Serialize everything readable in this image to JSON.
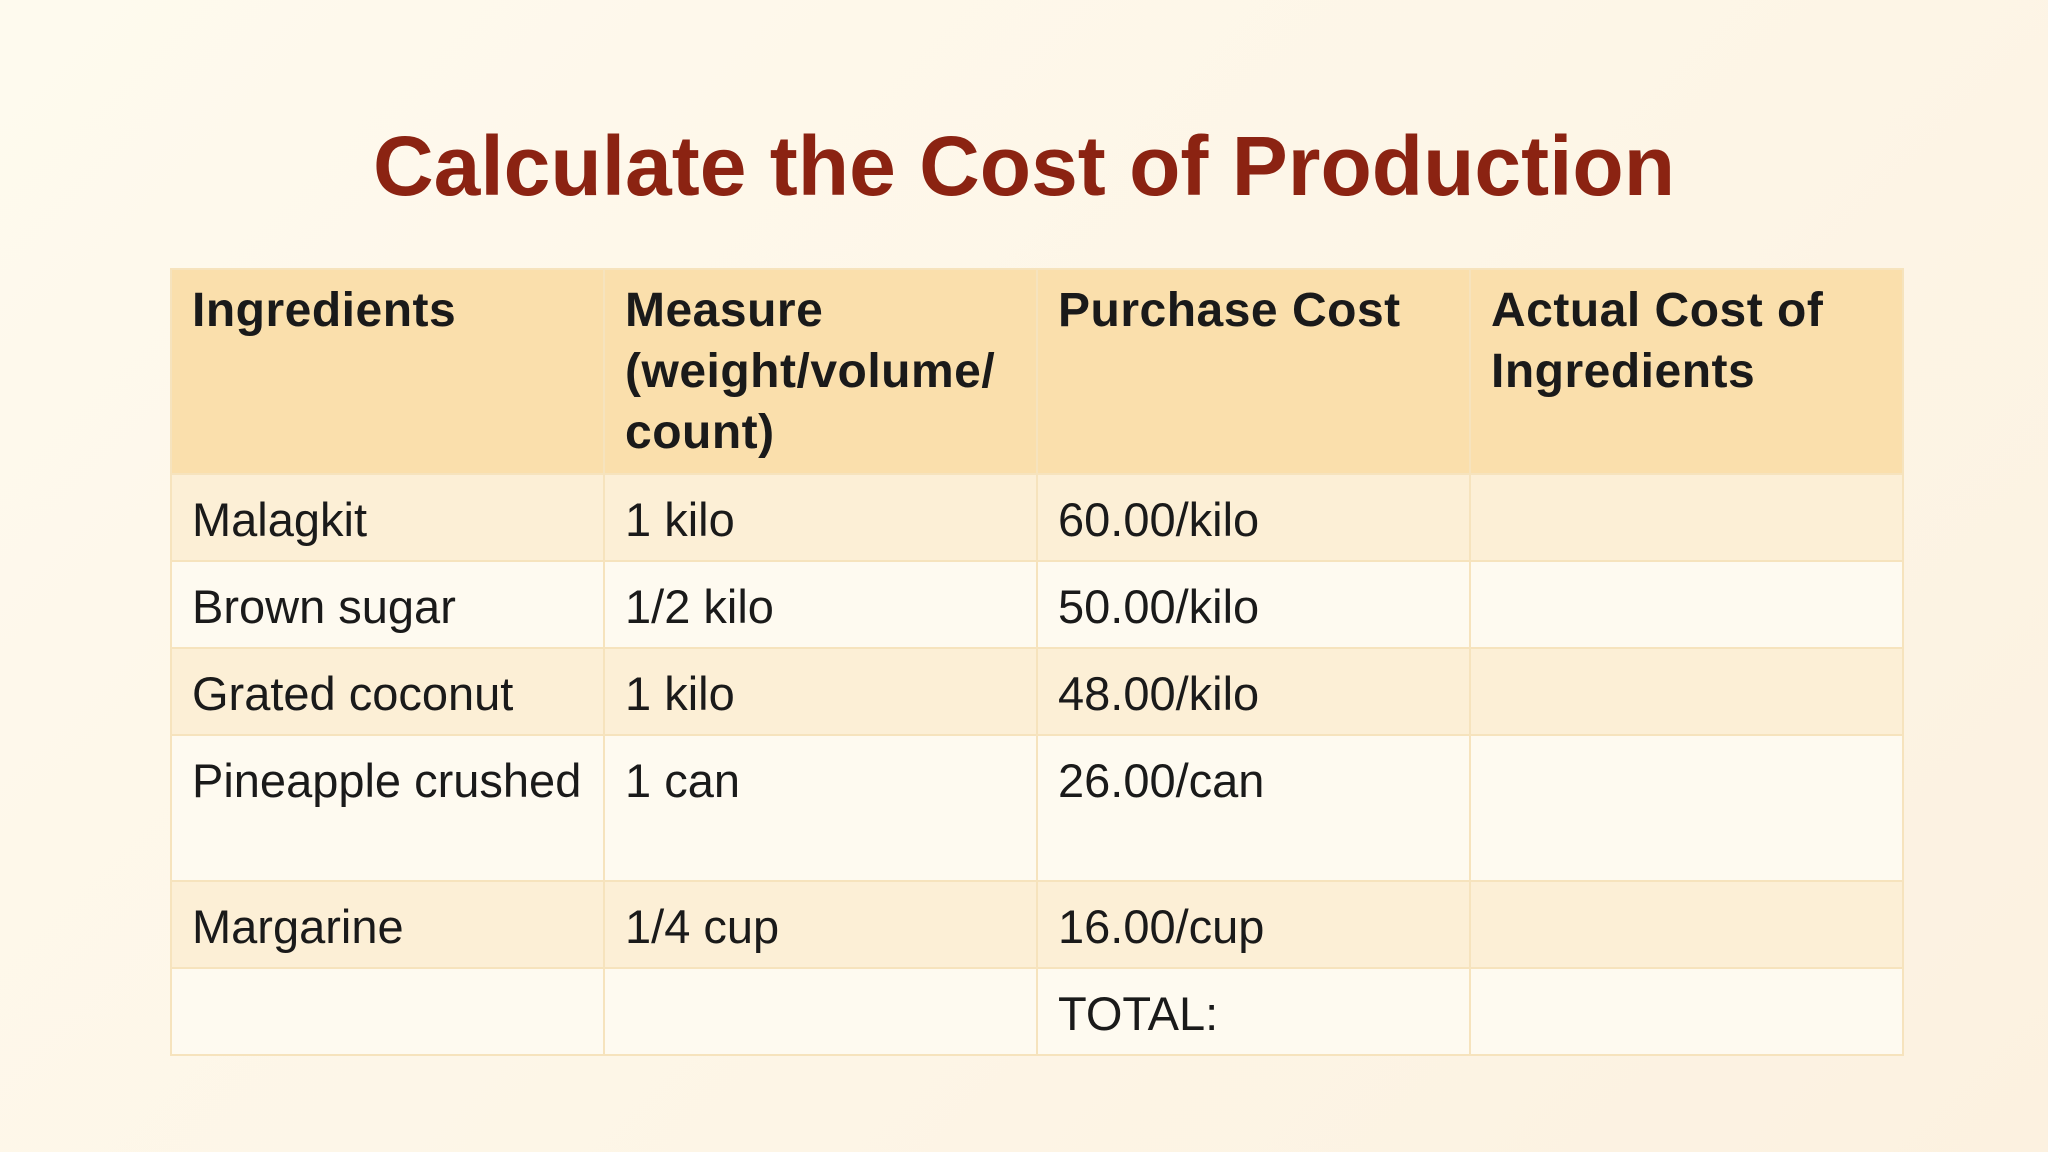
{
  "slide": {
    "title": "Calculate the Cost of Production"
  },
  "table": {
    "headers": [
      "Ingredients",
      "Measure (weight/volume/ count)",
      "Purchase Cost",
      "Actual Cost of Ingredients"
    ],
    "rows": [
      [
        "Malagkit",
        "1 kilo",
        "60.00/kilo",
        ""
      ],
      [
        "Brown sugar",
        "1/2 kilo",
        "50.00/kilo",
        ""
      ],
      [
        "Grated coconut",
        "1 kilo",
        "48.00/kilo",
        ""
      ],
      [
        "Pineapple crushed",
        "1 can",
        "26.00/can",
        ""
      ],
      [
        "Margarine",
        "1/4 cup",
        "16.00/cup",
        ""
      ],
      [
        "",
        "",
        "TOTAL:",
        ""
      ]
    ]
  },
  "colors": {
    "title": "#8b2312",
    "header_bg": "#fadfac",
    "row_odd_bg": "#fcefd6",
    "row_even_bg": "#fefaf0",
    "border": "#f6e3bd",
    "slide_bg": "#fdf8ec"
  }
}
